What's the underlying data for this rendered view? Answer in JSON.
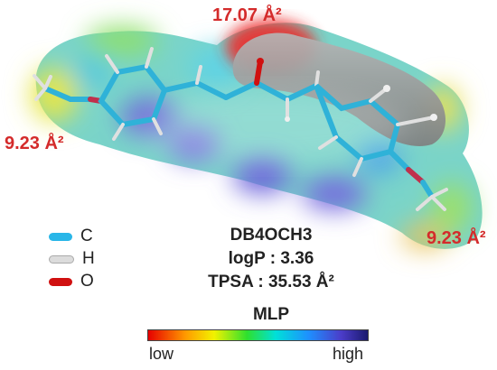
{
  "title": "DB4OCH3",
  "logp": "logP : 3.36",
  "tpsa": "TPSA : 35.53 Å²",
  "surface_area_labels": {
    "top": "17.07 Å²",
    "left": "9.23 Å²",
    "bottom_right": "9.23 Å²"
  },
  "atom_legend": [
    {
      "symbol": "C",
      "color": "#29b6e8"
    },
    {
      "symbol": "H",
      "color": "#dcdcdc"
    },
    {
      "symbol": "O",
      "color": "#d01010"
    }
  ],
  "colorbar": {
    "title": "MLP",
    "low_label": "low",
    "high_label": "high"
  }
}
